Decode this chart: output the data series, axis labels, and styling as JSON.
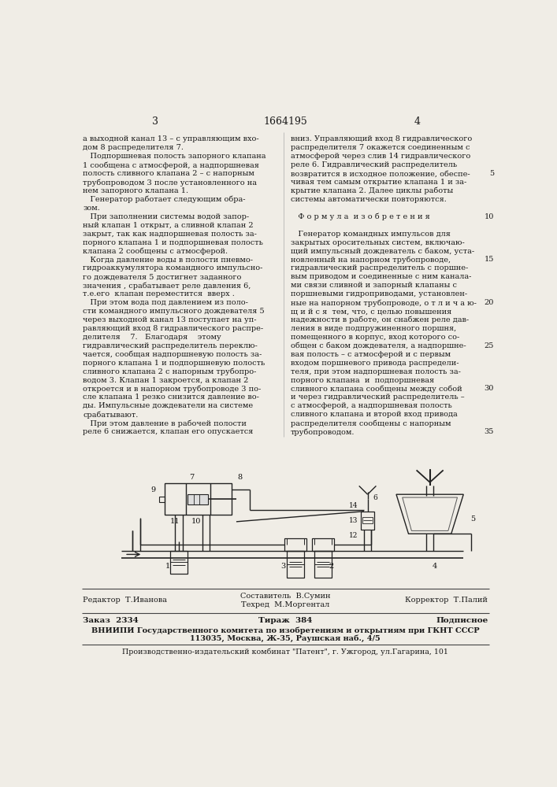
{
  "bg_color": "#f0ede6",
  "text_color": "#1a1a1a",
  "page_width": 7.07,
  "page_height": 10.0,
  "header": {
    "page_left": "3",
    "patent_num": "1664195",
    "page_right": "4"
  },
  "col1_text": [
    "а выходной канал 13 – с управляющим вхо-",
    "дом 8 распределителя 7.",
    "   Подпоршневая полость запорного клапана",
    "1 сообщена с атмосферой, а надпоршневая",
    "полость сливного клапана 2 – с напорным",
    "трубопроводом 3 после установленного на",
    "нем запорного клапана 1.",
    "   Генератор работает следующим обра-",
    "зом.",
    "   При заполнении системы водой запор-",
    "ный клапан 1 открыт, а сливной клапан 2",
    "закрыт, так как надпоршневая полость за-",
    "порного клапана 1 и подпоршневая полость",
    "клапана 2 сообщены с атмосферой.",
    "   Когда давление воды в полости пневмо-",
    "гидроаккумулятора командного импульсно-",
    "го дождевателя 5 достигнет заданного",
    "значения , срабатывает реле давления 6,",
    "т.е.его  клапан переместится  вверх .",
    "   При этом вода под давлением из поло-",
    "сти командного импульсного дождевателя 5",
    "через выходной канал 13 поступает на уп-",
    "равляющий вход 8 гидравлического распре-",
    "делителя    7.   Благодаря    этому",
    "гидравлический распределитель переклю-",
    "чается, сообщая надпоршневую полость за-",
    "порного клапана 1 и подпоршневую полость",
    "сливного клапана 2 с напорным трубопро-",
    "водом 3. Клапан 1 закроется, а клапан 2",
    "откроется и в напорном трубопроводе 3 по-",
    "сле клапана 1 резко снизится давление во-",
    "ды. Импульсные дождеватели на системе",
    "срабатывают.",
    "   При этом давление в рабочей полости",
    "реле 6 снижается, клапан его опускается"
  ],
  "col2_text": [
    "вниз. Управляющий вход 8 гидравлического",
    "распределителя 7 окажется соединенным с",
    "атмосферой через слив 14 гидравлического",
    "реле 6. Гидравлический распределитель",
    "возвратится в исходное положение, обеспе-",
    "чивая тем самым открытие клапана 1 и за-",
    "крытие клапана 2. Далее циклы работы",
    "системы автоматически повторяются.",
    "",
    "   Ф о р м у л а  и з о б р е т е н и я",
    "",
    "   Генератор командных импульсов для",
    "закрытых оросительных систем, включаю-",
    "щий импульсный дождеватель с баком, уста-",
    "новленный на напорном трубопроводе,",
    "гидравлический распределитель с поршне-",
    "вым приводом и соединенные с ним канала-",
    "ми связи сливной и запорный клапаны с",
    "поршневыми гидроприводами, установлен-",
    "ные на напорном трубопроводе, о т л и ч а ю-",
    "щ и й с я  тем, что, с целью повышения",
    "надежности в работе, он снабжен реле дав-",
    "ления в виде подпружиненного поршня,",
    "помещенного в корпус, вход которого со-",
    "общен с баком дождевателя, а надпоршне-",
    "вая полость – с атмосферой и с первым",
    "входом поршневого привода распредели-",
    "теля, при этом надпоршневая полость за-",
    "порного клапана  и  подпоршневая",
    "сливного клапана сообщены между собой",
    "и через гидравлический распределитель –",
    "с атмосферой, а надпоршневая полость",
    "сливного клапана и второй вход привода",
    "распределителя сообщены с напорным",
    "трубопроводом."
  ],
  "line_numbers": {
    "5": 4,
    "10": 9,
    "15": 14,
    "20": 19,
    "25": 24,
    "30": 29,
    "35": 34
  },
  "footer": {
    "editor": "Редактор  Т.Иванова",
    "compiler": "Составитель  В.Сумин",
    "techred": "Техред  М.Моргентал",
    "corrector": "Корректор  Т.Палий",
    "order": "Заказ  2334",
    "circulation": "Тираж  384",
    "subscription": "Подписное",
    "vnipi": "ВНИИПИ Государственного комитета по изобретениям и открытиям при ГКНТ СССР",
    "address": "113035, Москва, Ж-35, Раушская наб., 4/5",
    "producer": "Производственно-издательский комбинат \"Патент\", г. Ужгород, ул.Гагарина, 101"
  }
}
